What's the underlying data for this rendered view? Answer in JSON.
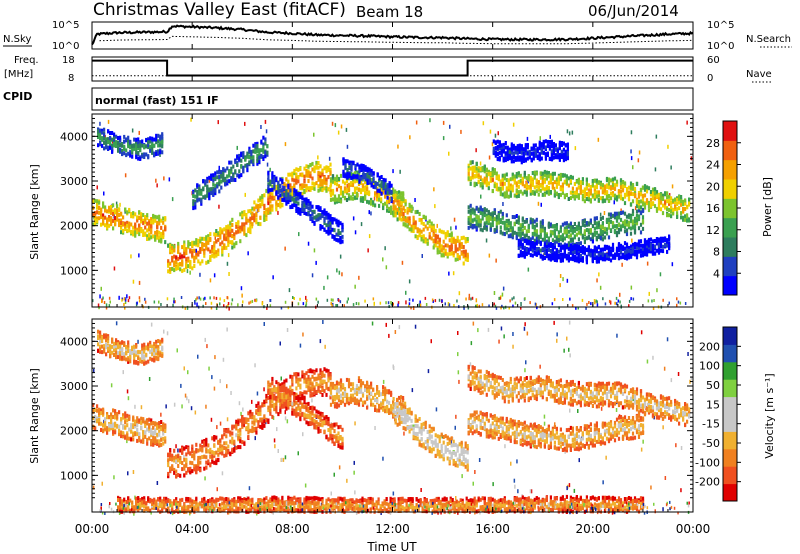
{
  "header": {
    "title": "Christmas Valley East (fitACF)",
    "beam": "Beam 18",
    "date": "06/Jun/2014"
  },
  "side_labels": {
    "nsky": "N.Sky",
    "nsearch": "N.Search",
    "freq": "Freq.",
    "freq_unit": "[MHz]",
    "nave": "Nave",
    "cpid": "CPID",
    "cpid_value": "normal (fast) 151 IF"
  },
  "colors": {
    "power": [
      "#0000ff",
      "#2040c0",
      "#2e7d5e",
      "#3aa050",
      "#7cc42e",
      "#f0d000",
      "#f5a000",
      "#f06010",
      "#e01010"
    ],
    "velocity": [
      "#e00000",
      "#f05020",
      "#f08020",
      "#f0b030",
      "#c8c8c8",
      "#c8c8c8",
      "#7fd040",
      "#30a030",
      "#2050b0",
      "#1020a0"
    ]
  },
  "chart_data": [
    {
      "type": "line",
      "name": "noise",
      "ylabel_left": "N.Sky",
      "ylabel_right": "N.Search",
      "left_ticks": [
        "10^5",
        "10^0"
      ],
      "right_ticks": [
        "10^5",
        "10^0"
      ],
      "x_hours": [
        0,
        0.2,
        1,
        2,
        3,
        3.2,
        4,
        5,
        6,
        7,
        8,
        9,
        10,
        11,
        12,
        13,
        14,
        15,
        16,
        17,
        18,
        19,
        20,
        21,
        22,
        23,
        24
      ],
      "level": [
        0.15,
        0.55,
        0.6,
        0.62,
        0.64,
        0.85,
        0.82,
        0.78,
        0.72,
        0.62,
        0.58,
        0.52,
        0.5,
        0.48,
        0.45,
        0.43,
        0.42,
        0.38,
        0.36,
        0.35,
        0.35,
        0.36,
        0.4,
        0.45,
        0.5,
        0.55,
        0.58
      ]
    },
    {
      "type": "line",
      "name": "frequency",
      "ylabel_left": "Freq. [MHz]",
      "ylabel_right": "Nave",
      "left_ticks": [
        "18",
        "8"
      ],
      "right_ticks": [
        "60",
        "0"
      ],
      "freq_segments": [
        {
          "x0": 0,
          "x1": 3.0,
          "freq": 16.5
        },
        {
          "x0": 3.0,
          "x1": 15.0,
          "freq": 10.3
        },
        {
          "x0": 15.0,
          "x1": 24.0,
          "freq": 16.5
        }
      ],
      "nave_level": 13.2
    },
    {
      "type": "heatmap",
      "name": "power",
      "ylabel": "Slant Range [km]",
      "ylim": [
        180,
        4500
      ],
      "yticks": [
        1000,
        2000,
        3000,
        4000
      ],
      "xlim": [
        0,
        24
      ],
      "colorbar_label": "Power [dB]",
      "colorbar_ticks": [
        "4",
        "8",
        "12",
        "16",
        "20",
        "24",
        "28"
      ],
      "bands": [
        {
          "x": [
            0,
            1,
            2,
            2.9
          ],
          "y": [
            2300,
            2150,
            2000,
            1900
          ],
          "w": 280,
          "level": 7
        },
        {
          "x": [
            0.2,
            1,
            2,
            2.8
          ],
          "y": [
            4000,
            3800,
            3700,
            3850
          ],
          "w": 220,
          "level": 3
        },
        {
          "x": [
            3,
            4,
            5,
            6,
            7,
            8,
            9,
            9.5
          ],
          "y": [
            1250,
            1350,
            1600,
            2000,
            2500,
            2950,
            3100,
            3050
          ],
          "w": 320,
          "level": 7
        },
        {
          "x": [
            4,
            5,
            6,
            7
          ],
          "y": [
            2600,
            3000,
            3400,
            3800
          ],
          "w": 250,
          "level": 3
        },
        {
          "x": [
            7,
            8,
            9,
            10
          ],
          "y": [
            3000,
            2600,
            2200,
            1800
          ],
          "w": 240,
          "level": 2
        },
        {
          "x": [
            9.5,
            10.5,
            11.5,
            12.5
          ],
          "y": [
            2800,
            2900,
            2700,
            2400
          ],
          "w": 300,
          "level": 6
        },
        {
          "x": [
            12,
            13,
            14,
            15
          ],
          "y": [
            2500,
            2000,
            1600,
            1400
          ],
          "w": 300,
          "level": 7
        },
        {
          "x": [
            10,
            11,
            12
          ],
          "y": [
            3300,
            3100,
            2700
          ],
          "w": 200,
          "level": 2
        },
        {
          "x": [
            15,
            16,
            17,
            18,
            19,
            20,
            21,
            22
          ],
          "y": [
            2200,
            2100,
            1950,
            1850,
            1800,
            1900,
            2050,
            2100
          ],
          "w": 260,
          "level": 4
        },
        {
          "x": [
            15,
            16.5,
            18,
            19.5,
            21,
            22.5,
            23.8
          ],
          "y": [
            3200,
            2900,
            2950,
            2800,
            2800,
            2550,
            2350
          ],
          "w": 260,
          "level": 6
        },
        {
          "x": [
            17,
            18.5,
            20,
            21.5,
            23
          ],
          "y": [
            1500,
            1400,
            1350,
            1450,
            1600
          ],
          "w": 180,
          "level": 1
        },
        {
          "x": [
            16,
            17,
            18,
            19
          ],
          "y": [
            3700,
            3600,
            3700,
            3650
          ],
          "w": 200,
          "level": 1
        }
      ]
    },
    {
      "type": "heatmap",
      "name": "velocity",
      "ylabel": "Slant Range [km]",
      "ylim": [
        180,
        4500
      ],
      "yticks": [
        1000,
        2000,
        3000,
        4000
      ],
      "xlim": [
        0,
        24
      ],
      "xticks": [
        "00:00",
        "04:00",
        "08:00",
        "12:00",
        "16:00",
        "20:00",
        "00:00"
      ],
      "xlabel": "Time UT",
      "colorbar_label": "Velocity [m s⁻¹]",
      "colorbar_ticks": [
        "-200",
        "-100",
        "-50",
        "-15",
        "15",
        "50",
        "100",
        "200"
      ],
      "bands": [
        {
          "x": [
            0,
            1,
            2,
            2.9
          ],
          "y": [
            2300,
            2150,
            2000,
            1900
          ],
          "w": 280,
          "level": 4
        },
        {
          "x": [
            0.2,
            1,
            2,
            2.8
          ],
          "y": [
            4000,
            3800,
            3700,
            3850
          ],
          "w": 220,
          "level": 4
        },
        {
          "x": [
            3,
            4,
            5,
            6,
            7,
            8,
            9,
            9.5
          ],
          "y": [
            1250,
            1350,
            1600,
            2000,
            2500,
            2950,
            3100,
            3050
          ],
          "w": 320,
          "level": 3
        },
        {
          "x": [
            7,
            8,
            9,
            10
          ],
          "y": [
            3000,
            2600,
            2200,
            1800
          ],
          "w": 240,
          "level": 3
        },
        {
          "x": [
            9.5,
            10.5,
            11.5,
            12.5
          ],
          "y": [
            2800,
            2900,
            2700,
            2400
          ],
          "w": 300,
          "level": 4
        },
        {
          "x": [
            12,
            13,
            14,
            15
          ],
          "y": [
            2500,
            2000,
            1600,
            1400
          ],
          "w": 300,
          "level": 5
        },
        {
          "x": [
            15,
            16,
            17,
            18,
            19,
            20,
            21,
            22
          ],
          "y": [
            2200,
            2100,
            1950,
            1850,
            1800,
            1900,
            2050,
            2100
          ],
          "w": 260,
          "level": 4
        },
        {
          "x": [
            15,
            16.5,
            18,
            19.5,
            21,
            22.5,
            23.8
          ],
          "y": [
            3200,
            2900,
            2950,
            2800,
            2800,
            2550,
            2350
          ],
          "w": 260,
          "level": 4
        },
        {
          "x": [
            1,
            4,
            7,
            10,
            13,
            16,
            19,
            22
          ],
          "y": [
            320,
            300,
            330,
            310,
            300,
            320,
            340,
            310
          ],
          "w": 180,
          "level": 3
        }
      ]
    }
  ]
}
